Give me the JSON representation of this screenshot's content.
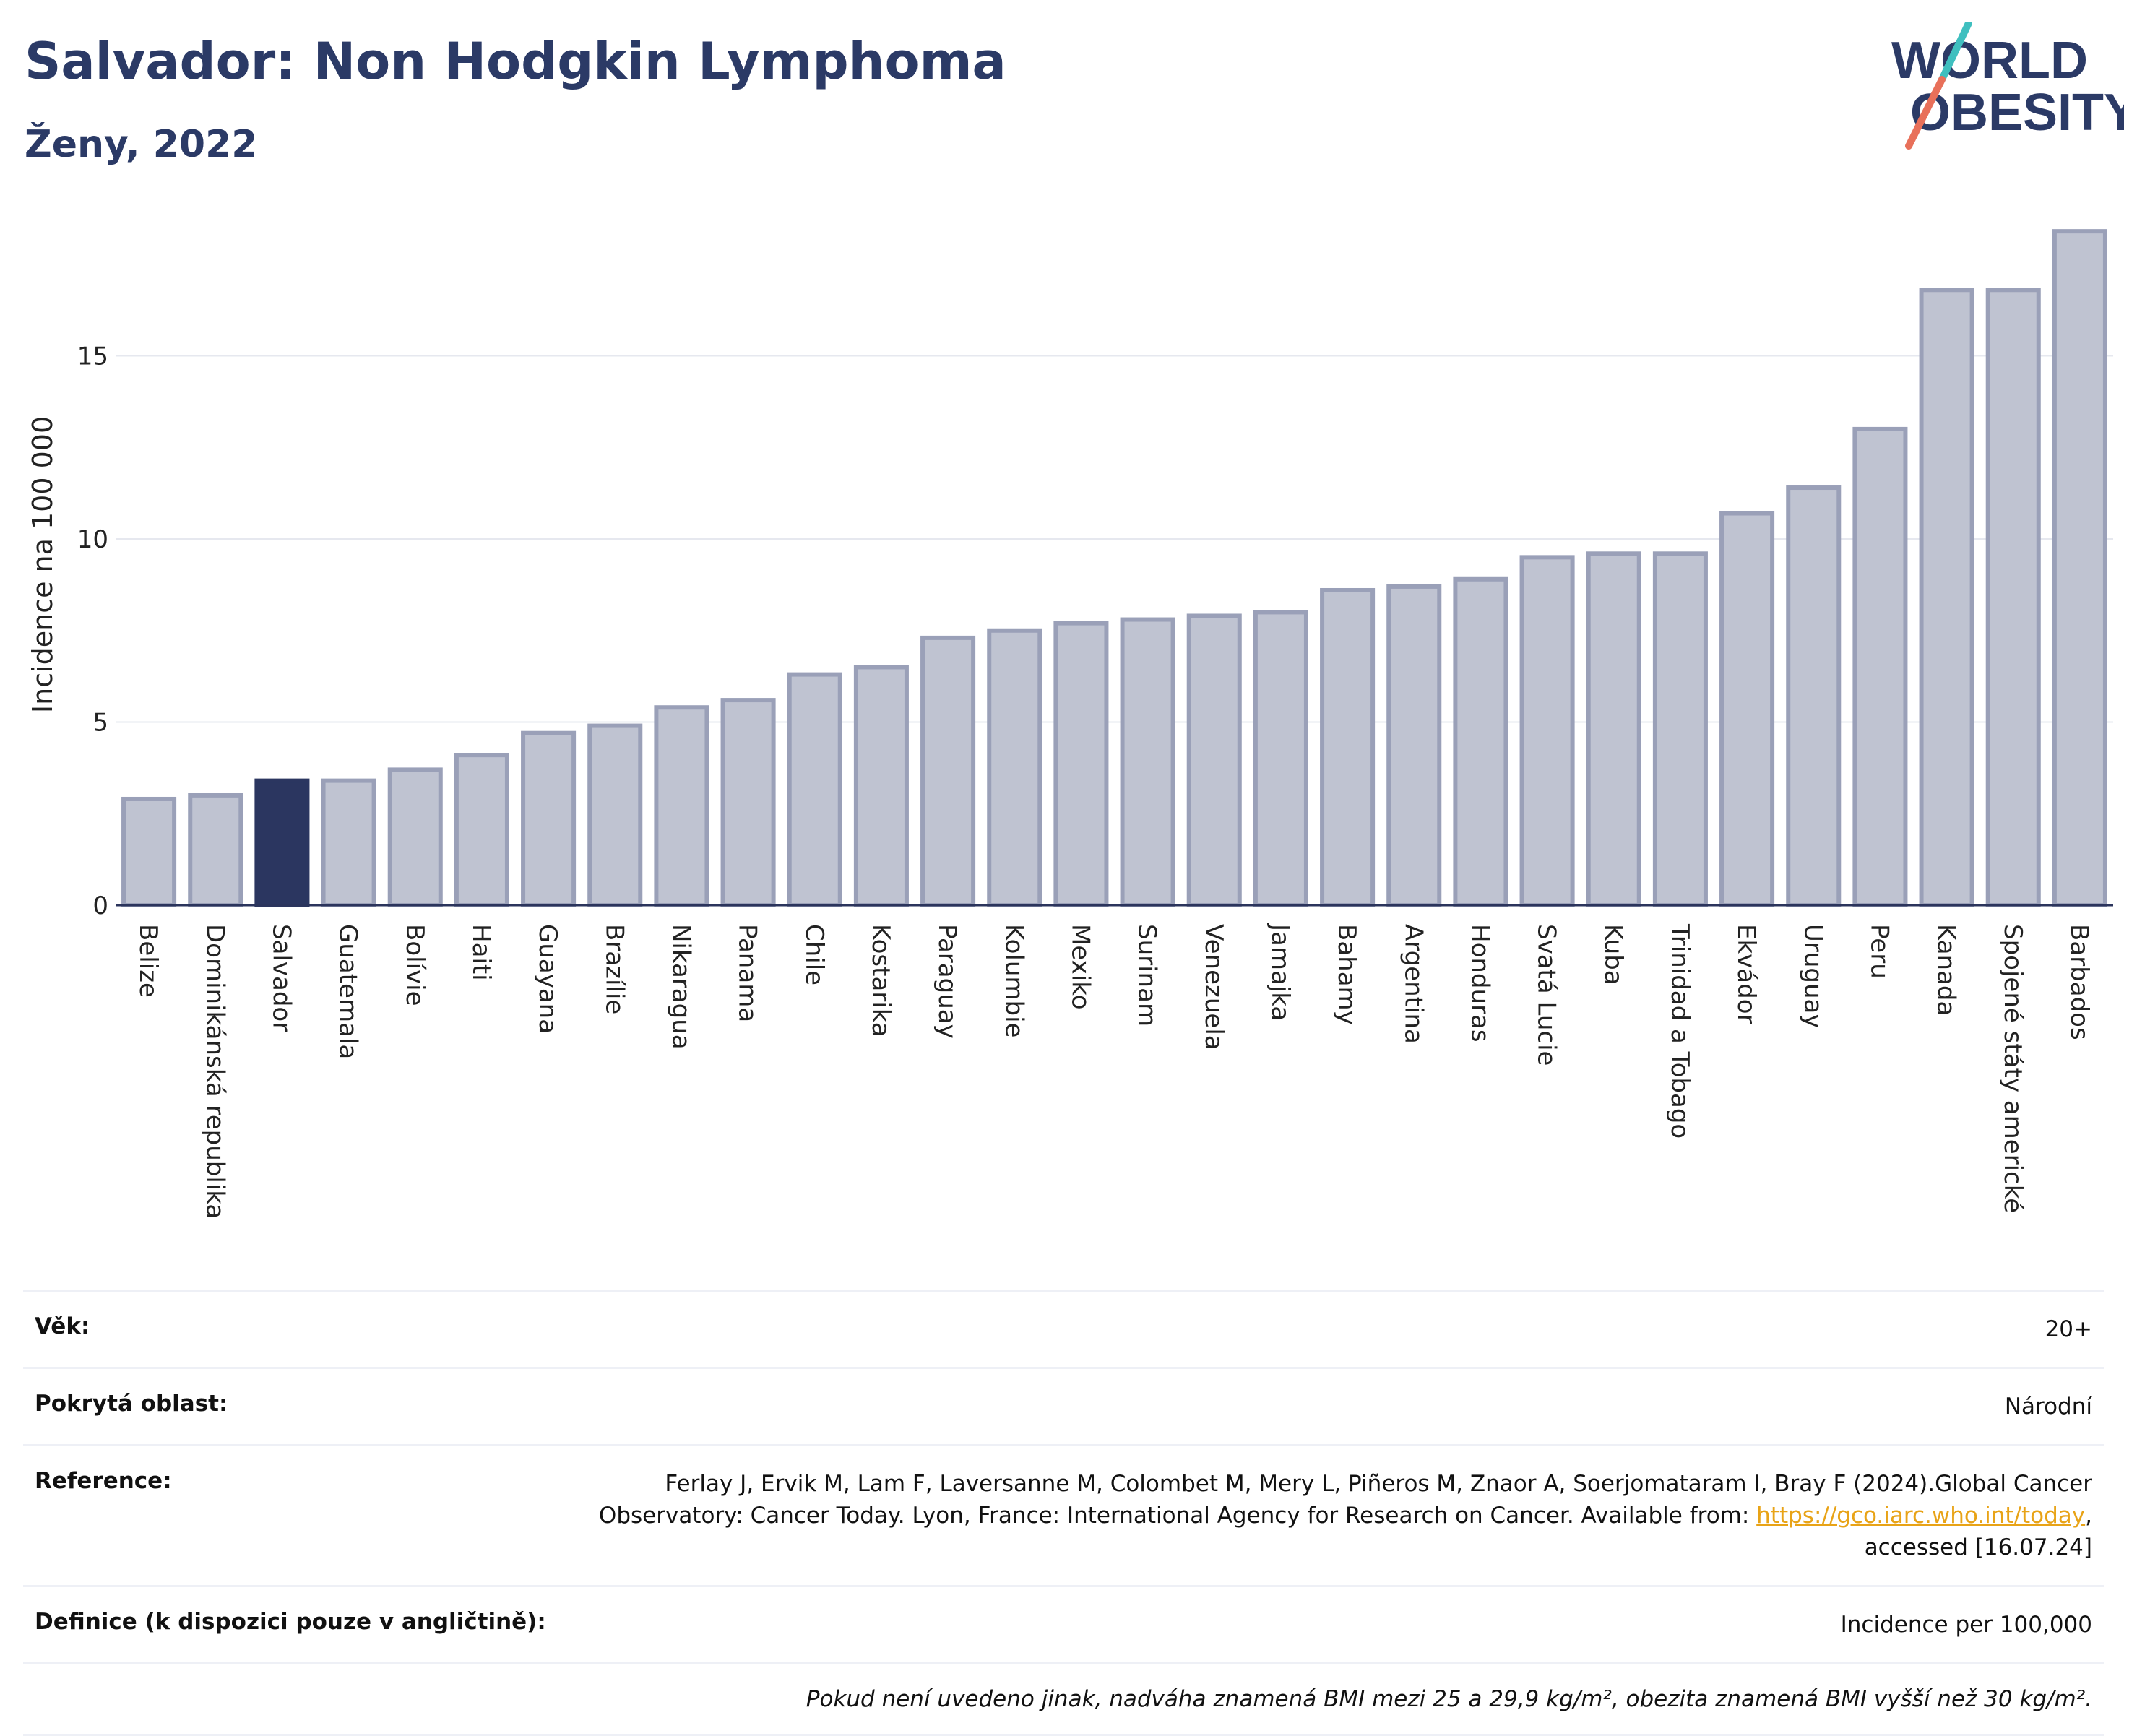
{
  "header": {
    "title": "Salvador: Non Hodgkin Lymphoma",
    "subtitle": "Ženy, 2022"
  },
  "logo": {
    "line1": "WORLD",
    "line2": "OBESITY"
  },
  "colors": {
    "bar": "#bfc3d1",
    "bar_border": "#9aa0b8",
    "highlight": "#2b3660",
    "axis": "#2b345c",
    "grid": "#e6e8ef"
  },
  "chart_data": {
    "type": "bar",
    "title": "Salvador: Non Hodgkin Lymphoma",
    "subtitle": "Ženy, 2022",
    "xlabel": "",
    "ylabel": "Incidence na 100 000",
    "ylim": [
      0,
      18.6
    ],
    "yticks": [
      0,
      5,
      10,
      15
    ],
    "grid": true,
    "highlight": "Salvador",
    "categories": [
      "Belize",
      "Dominikánská republika",
      "Salvador",
      "Guatemala",
      "Bolívie",
      "Haiti",
      "Guayana",
      "Brazílie",
      "Nikaragua",
      "Panama",
      "Chile",
      "Kostarika",
      "Paraguay",
      "Kolumbie",
      "Mexiko",
      "Surinam",
      "Venezuela",
      "Jamajka",
      "Bahamy",
      "Argentina",
      "Honduras",
      "Svatá Lucie",
      "Kuba",
      "Trinidad a Tobago",
      "Ekvádor",
      "Uruguay",
      "Peru",
      "Kanada",
      "Spojené státy americké",
      "Barbados"
    ],
    "values": [
      2.9,
      3.0,
      3.4,
      3.4,
      3.7,
      4.1,
      4.7,
      4.9,
      5.4,
      5.6,
      6.3,
      6.5,
      7.3,
      7.5,
      7.7,
      7.8,
      7.9,
      8.0,
      8.6,
      8.7,
      8.9,
      9.5,
      9.6,
      9.6,
      10.7,
      11.4,
      13.0,
      16.8,
      16.8,
      18.4
    ]
  },
  "info": {
    "age_label": "Věk:",
    "age_value": "20+",
    "area_label": "Pokrytá oblast:",
    "area_value": "Národní",
    "ref_label": "Reference:",
    "ref_text_1": "Ferlay J, Ervik M, Lam F, Laversanne M, Colombet M, Mery L, Piñeros M, Znaor A, Soerjomataram I, Bray F (2024).Global Cancer",
    "ref_text_2": "Observatory: Cancer Today. Lyon, France: International Agency for Research on Cancer. Available from: ",
    "ref_link": "https://gco.iarc.who.int/today",
    "ref_text_3": ",",
    "ref_text_4": "accessed [16.07.24]",
    "def_label": "Definice (k dispozici pouze v angličtině):",
    "def_value": "Incidence per 100,000",
    "note": "Pokud není uvedeno jinak, nadváha znamená BMI mezi 25 a 29,9 kg/m², obezita znamená BMI vyšší než 30 kg/m²."
  }
}
